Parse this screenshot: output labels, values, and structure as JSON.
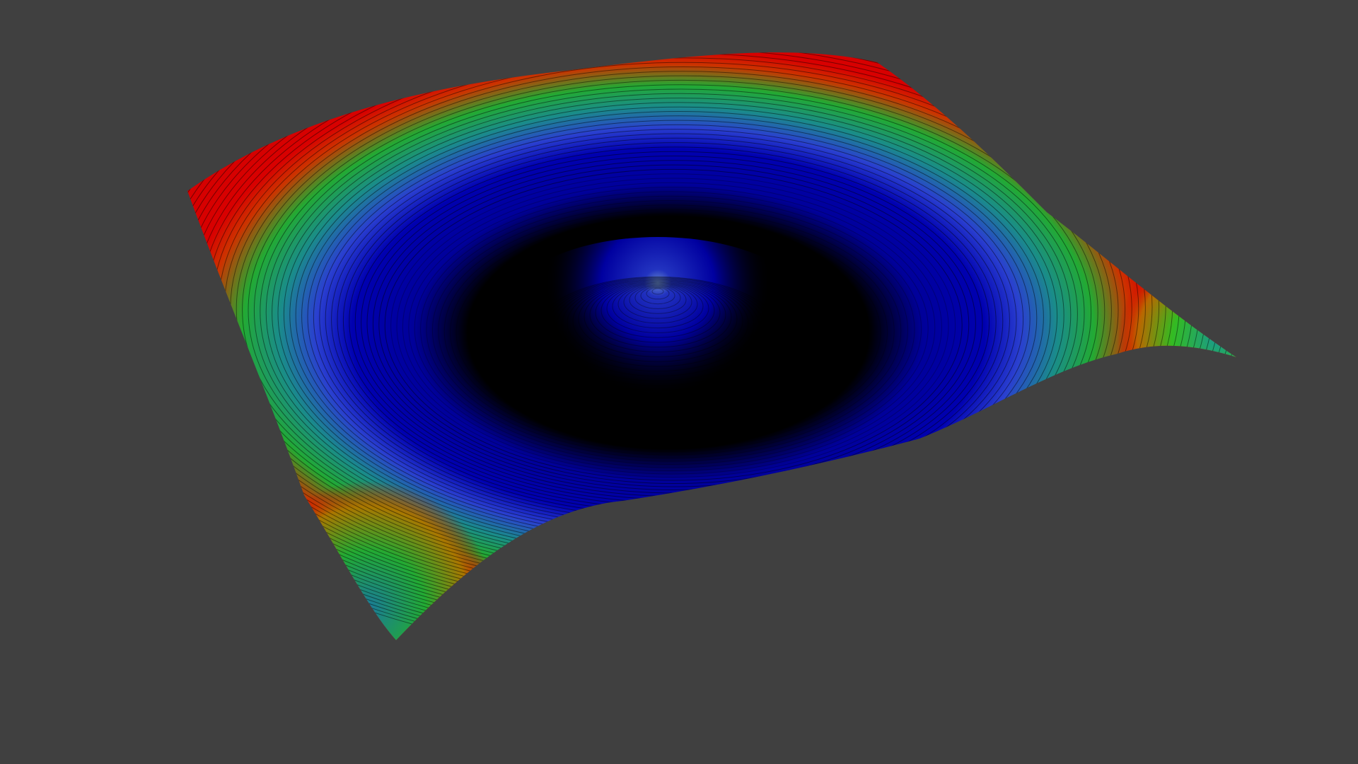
{
  "scene": {
    "background_color": "#404040",
    "object": "ripple-surface",
    "colormap": [
      "#000000",
      "#0000b0",
      "#2a3fd0",
      "#1a9a7a",
      "#22aa33",
      "#cc2200",
      "#d80000"
    ],
    "contour_color": "#000000"
  }
}
